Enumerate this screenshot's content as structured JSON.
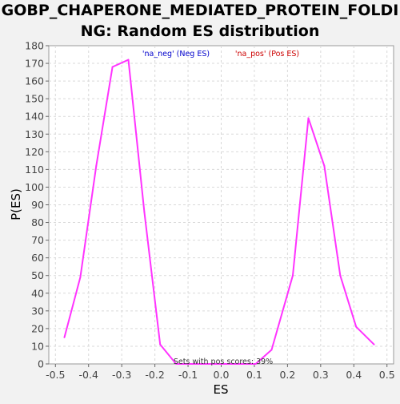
{
  "chart_data": {
    "type": "line",
    "title_line1": "GOBP_CHAPERONE_MEDIATED_PROTEIN_FOLDI",
    "title_line2": "NG: Random ES distribution",
    "xlabel": "ES",
    "ylabel": "P(ES)",
    "xlim": [
      -0.52,
      0.52
    ],
    "ylim": [
      0,
      180
    ],
    "x_ticks": [
      -0.5,
      -0.4,
      -0.3,
      -0.2,
      -0.1,
      0.0,
      0.1,
      0.2,
      0.3,
      0.4,
      0.5
    ],
    "x_tick_labels": [
      "-0.5",
      "-0.4",
      "-0.3",
      "-0.2",
      "-0.1",
      "0.0",
      "0.1",
      "0.2",
      "0.3",
      "0.4",
      "0.5"
    ],
    "y_ticks": [
      0,
      10,
      20,
      30,
      40,
      50,
      60,
      70,
      80,
      90,
      100,
      110,
      120,
      130,
      140,
      150,
      160,
      170,
      180
    ],
    "y_tick_labels": [
      "0",
      "10",
      "20",
      "30",
      "40",
      "50",
      "60",
      "70",
      "80",
      "90",
      "100",
      "110",
      "120",
      "130",
      "140",
      "150",
      "160",
      "170",
      "180"
    ],
    "grid": true,
    "legend": [
      {
        "label": "'na_neg' (Neg ES)",
        "color": "#0000cc"
      },
      {
        "label": "'na_pos' (Pos ES)",
        "color": "#cc0000"
      }
    ],
    "annotation": "Sets with pos scores: 39%",
    "series": [
      {
        "color": "#ff33ff",
        "points": [
          [
            -0.473,
            15
          ],
          [
            -0.425,
            49
          ],
          [
            -0.377,
            112
          ],
          [
            -0.328,
            168
          ],
          [
            -0.28,
            172
          ],
          [
            -0.232,
            86
          ],
          [
            -0.184,
            11
          ],
          [
            -0.136,
            0
          ],
          [
            -0.088,
            0
          ],
          [
            -0.04,
            0
          ],
          [
            0.008,
            0
          ],
          [
            0.056,
            0
          ],
          [
            0.104,
            0
          ],
          [
            0.152,
            8
          ],
          [
            0.216,
            50
          ],
          [
            0.263,
            139
          ],
          [
            0.311,
            112
          ],
          [
            0.359,
            50
          ],
          [
            0.407,
            21
          ],
          [
            0.461,
            11
          ]
        ]
      }
    ]
  }
}
